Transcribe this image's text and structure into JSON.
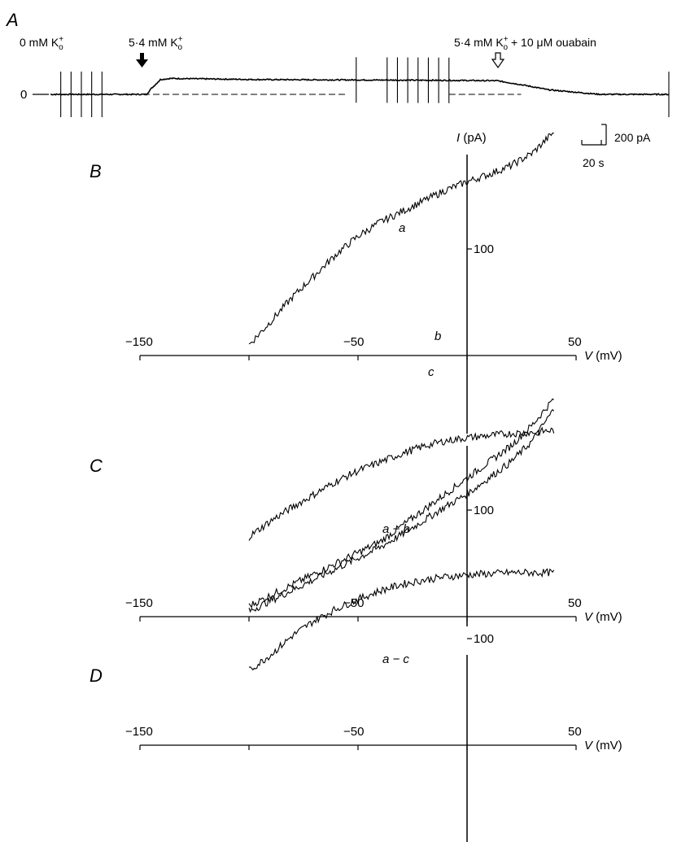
{
  "figure": {
    "panel_A": {
      "letter": "A",
      "zero_label": "0",
      "condition_1": "0 mM K",
      "condition_2": "5·4 mM K",
      "condition_3": "5·4 mM K",
      "condition_3_suffix": " + 10 μM ouabain",
      "k_sub": "o",
      "k_sup": "+",
      "scale_current": "200 pA",
      "scale_time": "20 s"
    },
    "iv_axis": {
      "y_label_symbol": "I",
      "y_label_unit": " (pA)",
      "x_label_symbol": "V",
      "x_label_unit": " (mV)"
    }
  },
  "chart_data": [
    {
      "panel": "A",
      "type": "line",
      "description_free": true,
      "ylabel": "",
      "xlabel": "",
      "trace": {
        "x_s": [
          0,
          28,
          29,
          32,
          35,
          60,
          110,
          130,
          138,
          145,
          160,
          180
        ],
        "y_pA": [
          0,
          0,
          20,
          65,
          70,
          65,
          62,
          60,
          40,
          20,
          0,
          0
        ]
      },
      "ramp_times_s": [
        3,
        6,
        9,
        12,
        15,
        89,
        98,
        101,
        104,
        107,
        110,
        113,
        116,
        180
      ],
      "markers": [
        {
          "time_s": 30,
          "label": "5·4 mM K",
          "style": "filled-arrow"
        },
        {
          "time_s": 137,
          "label": "5·4 mM K + 10 μM ouabain",
          "style": "open-arrow"
        }
      ]
    },
    {
      "panel": "B",
      "type": "line",
      "xlim": [
        -150,
        50
      ],
      "x_ticks": [
        -150,
        -100,
        -50,
        0,
        50
      ],
      "x_tick_labels": [
        "-150",
        "",
        "-50",
        "",
        "50"
      ],
      "y_tick_labels": [
        "100"
      ],
      "y_ticks": [
        100
      ],
      "series": [
        {
          "name": "a",
          "x": [
            -100,
            -90,
            -80,
            -70,
            -60,
            -50,
            -40,
            -30,
            -20,
            -10,
            0,
            10,
            20,
            30,
            40
          ],
          "y": [
            10,
            32,
            55,
            75,
            95,
            112,
            125,
            135,
            145,
            155,
            163,
            170,
            178,
            190,
            210
          ]
        },
        {
          "name": "b",
          "x": [
            -100,
            -90,
            -80,
            -70,
            -60,
            -50,
            -40,
            -30,
            -20,
            -10,
            0,
            10,
            20,
            30,
            40
          ],
          "y": [
            -235,
            -225,
            -215,
            -205,
            -195,
            -185,
            -175,
            -160,
            -145,
            -130,
            -115,
            -100,
            -85,
            -65,
            -40
          ]
        },
        {
          "name": "c",
          "x": [
            -100,
            -90,
            -80,
            -70,
            -60,
            -50,
            -40,
            -30,
            -20,
            -10,
            0,
            10,
            20,
            30,
            40
          ],
          "y": [
            -240,
            -230,
            -220,
            -210,
            -200,
            -190,
            -180,
            -168,
            -155,
            -142,
            -130,
            -115,
            -100,
            -80,
            -50
          ]
        }
      ]
    },
    {
      "panel": "C",
      "type": "line",
      "xlim": [
        -150,
        50
      ],
      "x_ticks": [
        -150,
        -100,
        -50,
        0,
        50
      ],
      "x_tick_labels": [
        "-150",
        "",
        "-50",
        "",
        "50"
      ],
      "y_ticks": [
        100
      ],
      "y_tick_labels": [
        "100"
      ],
      "series": [
        {
          "name": "a − b",
          "x": [
            -100,
            -90,
            -80,
            -70,
            -60,
            -50,
            -40,
            -30,
            -20,
            -10,
            0,
            10,
            20,
            30,
            40
          ],
          "y": [
            10,
            25,
            38,
            50,
            62,
            72,
            80,
            88,
            95,
            100,
            103,
            105,
            107,
            108,
            110
          ]
        }
      ]
    },
    {
      "panel": "D",
      "type": "line",
      "xlim": [
        -150,
        50
      ],
      "x_ticks": [
        -150,
        -100,
        -50,
        0,
        50
      ],
      "x_tick_labels": [
        "-150",
        "",
        "-50",
        "",
        "50"
      ],
      "y_ticks": [
        100
      ],
      "y_tick_labels": [
        "100"
      ],
      "series": [
        {
          "name": "a − c",
          "x": [
            -100,
            -90,
            -80,
            -70,
            -60,
            -50,
            -40,
            -30,
            -20,
            -10,
            0,
            10,
            20,
            30,
            40
          ],
          "y": [
            5,
            20,
            38,
            52,
            63,
            72,
            80,
            86,
            90,
            93,
            95,
            96,
            97,
            97,
            97
          ]
        }
      ]
    }
  ]
}
